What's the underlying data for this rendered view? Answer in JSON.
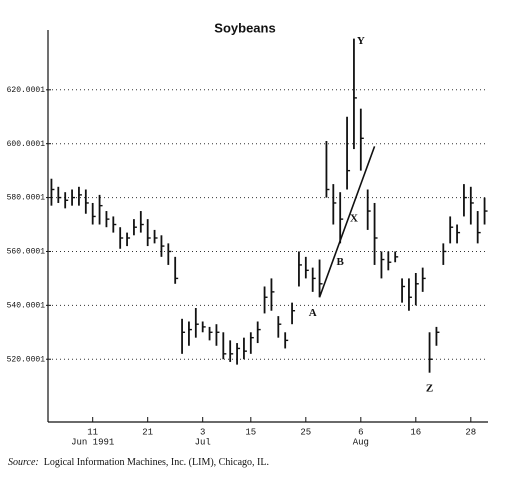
{
  "chart_data": {
    "type": "ohlc",
    "title": "Soybeans",
    "x": [
      "1991-06-03",
      "1991-06-04",
      "1991-06-05",
      "1991-06-06",
      "1991-06-07",
      "1991-06-10",
      "1991-06-11",
      "1991-06-12",
      "1991-06-13",
      "1991-06-14",
      "1991-06-17",
      "1991-06-18",
      "1991-06-19",
      "1991-06-20",
      "1991-06-21",
      "1991-06-24",
      "1991-06-25",
      "1991-06-26",
      "1991-06-27",
      "1991-06-28",
      "1991-07-01",
      "1991-07-02",
      "1991-07-03",
      "1991-07-05",
      "1991-07-08",
      "1991-07-09",
      "1991-07-10",
      "1991-07-11",
      "1991-07-12",
      "1991-07-15",
      "1991-07-16",
      "1991-07-17",
      "1991-07-18",
      "1991-07-19",
      "1991-07-22",
      "1991-07-23",
      "1991-07-24",
      "1991-07-25",
      "1991-07-26",
      "1991-07-29",
      "1991-07-30",
      "1991-07-31",
      "1991-08-01",
      "1991-08-02",
      "1991-08-05",
      "1991-08-06",
      "1991-08-07",
      "1991-08-08",
      "1991-08-09",
      "1991-08-12",
      "1991-08-13",
      "1991-08-14",
      "1991-08-15",
      "1991-08-16",
      "1991-08-19",
      "1991-08-20",
      "1991-08-21",
      "1991-08-22",
      "1991-08-23",
      "1991-08-26",
      "1991-08-27",
      "1991-08-28",
      "1991-08-29",
      "1991-08-30"
    ],
    "high": [
      587,
      584,
      582,
      583,
      584,
      583,
      578,
      581,
      575,
      573,
      569,
      567,
      572,
      575,
      572,
      568,
      566,
      563,
      558,
      535,
      534,
      539,
      534,
      532,
      533,
      530,
      527,
      526,
      528,
      530,
      534,
      547,
      550,
      536,
      530,
      541,
      560,
      558,
      554,
      557,
      601,
      585,
      582,
      610,
      639,
      613,
      583,
      578,
      560,
      560,
      560,
      550,
      550,
      552,
      554,
      530,
      532,
      563,
      573,
      570,
      585,
      584,
      575,
      580
    ],
    "low": [
      577,
      578,
      576,
      577,
      577,
      574,
      570,
      570,
      569,
      567,
      561,
      562,
      566,
      567,
      562,
      563,
      558,
      555,
      548,
      522,
      525,
      528,
      530,
      527,
      525,
      520,
      519,
      518,
      520,
      522,
      526,
      537,
      538,
      528,
      524,
      533,
      547,
      550,
      545,
      543,
      580,
      570,
      563,
      583,
      598,
      590,
      568,
      555,
      550,
      553,
      556,
      541,
      538,
      540,
      545,
      515,
      525,
      555,
      563,
      563,
      573,
      570,
      563,
      570
    ],
    "close": [
      583,
      580,
      579,
      580,
      581,
      578,
      573,
      577,
      572,
      570,
      565,
      565,
      569,
      570,
      565,
      565,
      562,
      560,
      550,
      530,
      531,
      533,
      532,
      530,
      530,
      522,
      522,
      524,
      523,
      528,
      531,
      543,
      545,
      533,
      527,
      538,
      555,
      553,
      550,
      548,
      583,
      578,
      572,
      590,
      617,
      602,
      575,
      565,
      557,
      556,
      558,
      547,
      543,
      548,
      550,
      520,
      530,
      560,
      569,
      567,
      580,
      578,
      567,
      575
    ],
    "color": "#111111",
    "ylim": [
      496.7,
      642.2
    ],
    "yticks": [
      520.0001,
      540.0001,
      560.0001,
      580.0001,
      600.0001,
      620.0001
    ],
    "grid": true,
    "xticks": [
      {
        "value": "1991-06-11",
        "label": "11"
      },
      {
        "value": "1991-06-21",
        "label": "21"
      },
      {
        "value": "1991-07-03",
        "label": "3"
      },
      {
        "value": "1991-07-15",
        "label": "15"
      },
      {
        "value": "1991-07-25",
        "label": "25"
      },
      {
        "value": "1991-08-06",
        "label": "6"
      },
      {
        "value": "1991-08-16",
        "label": "16"
      },
      {
        "value": "1991-08-28",
        "label": "28"
      }
    ],
    "month_labels": [
      {
        "value": "1991-06-11",
        "label": "Jun 1991"
      },
      {
        "value": "1991-07-03",
        "label": "Jul"
      },
      {
        "value": "1991-08-06",
        "label": "Aug"
      }
    ],
    "annotations": [
      {
        "text": "A",
        "x": "1991-07-26",
        "y": 537
      },
      {
        "text": "B",
        "x": "1991-08-01",
        "y": 556
      },
      {
        "text": "X",
        "x": "1991-08-05",
        "y": 572
      },
      {
        "text": "Y",
        "x": "1991-08-06",
        "y": 638
      },
      {
        "text": "Z",
        "x": "1991-08-20",
        "y": 509
      }
    ],
    "trendline": [
      {
        "x": "1991-07-29",
        "y": 543
      },
      {
        "x": "1991-08-08",
        "y": 599
      }
    ],
    "source_label": "Source:",
    "source_text": "Logical Information Machines, Inc. (LIM), Chicago, IL."
  }
}
